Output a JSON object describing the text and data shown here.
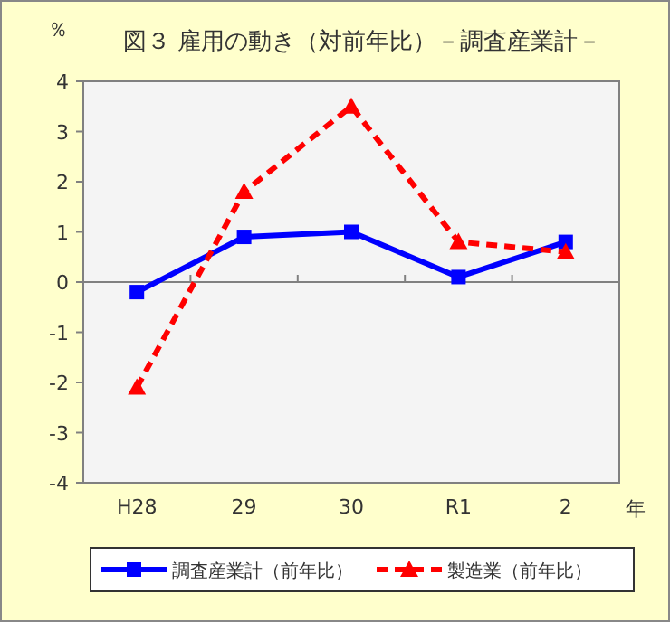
{
  "chart_data": {
    "type": "line",
    "title": "図３ 雇用の動き（対前年比）－調査産業計－",
    "ylabel": "％",
    "xlabel": "年",
    "categories": [
      "H28",
      "29",
      "30",
      "R1",
      "2"
    ],
    "series": [
      {
        "name": "調査産業計（前年比）",
        "color": "#0000ff",
        "marker": "square",
        "line_style": "solid",
        "values": [
          -0.2,
          0.9,
          1.0,
          0.1,
          0.8
        ]
      },
      {
        "name": "製造業（前年比）",
        "color": "#ff0000",
        "marker": "triangle",
        "line_style": "dashed",
        "values": [
          -2.1,
          1.8,
          3.5,
          0.8,
          0.6
        ]
      }
    ],
    "ylim": [
      -4,
      4
    ],
    "yticks": [
      -4,
      -3,
      -2,
      -1,
      0,
      1,
      2,
      3,
      4
    ],
    "legend": "bottom"
  }
}
